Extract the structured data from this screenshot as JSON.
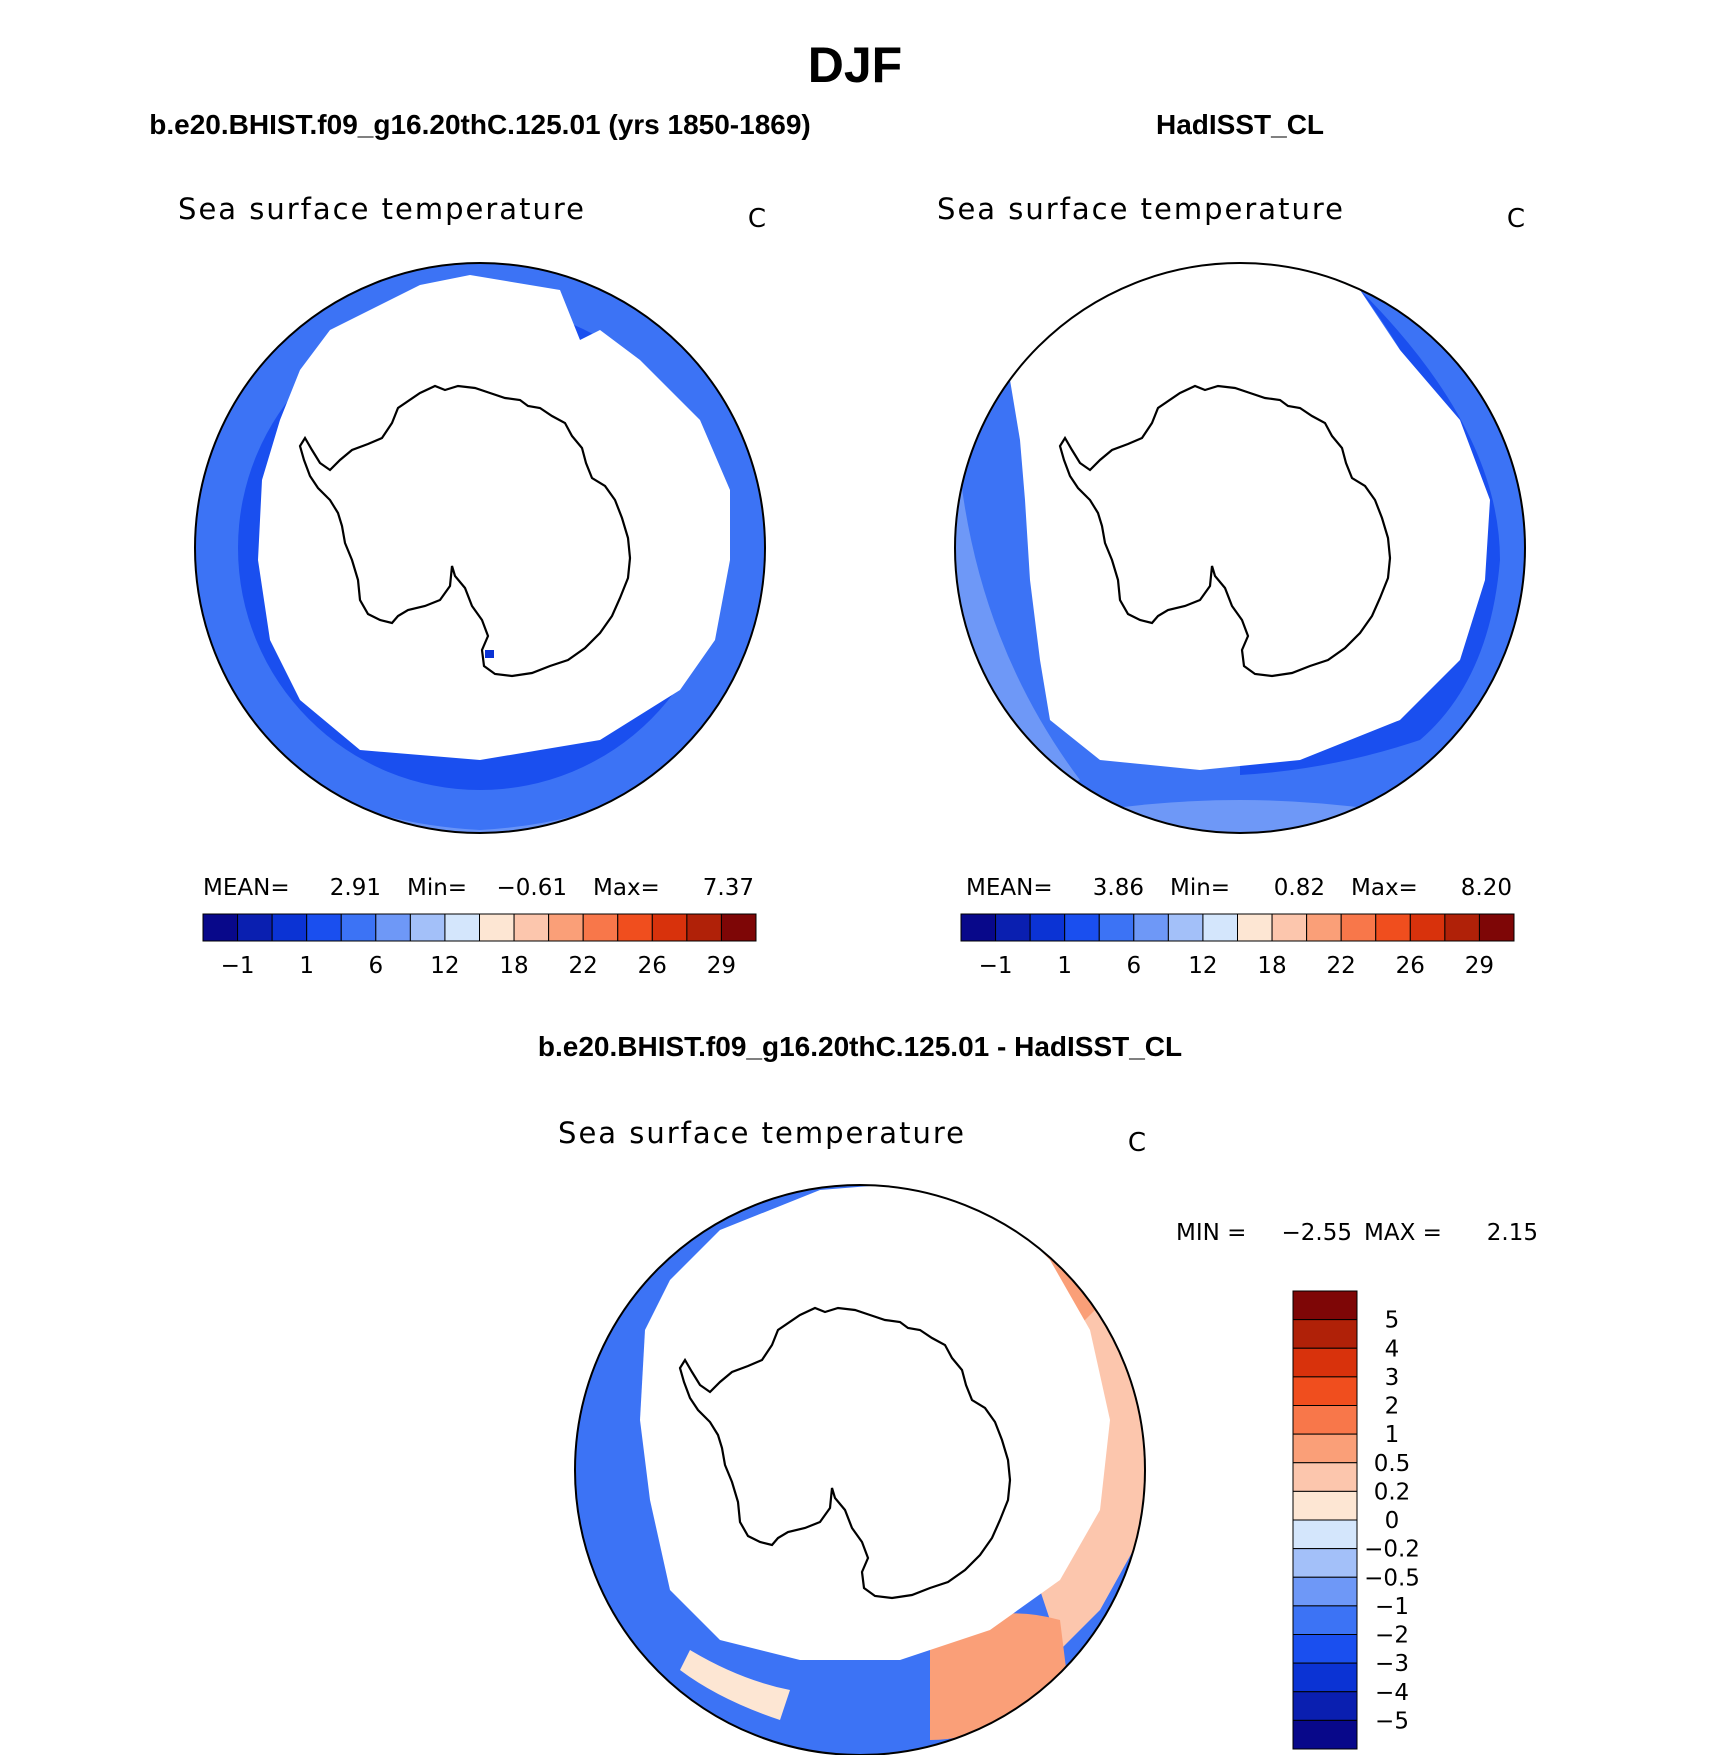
{
  "figure": {
    "season": "DJF",
    "variable": "Sea surface temperature",
    "units": "C"
  },
  "panels": [
    {
      "title": "b.e20.BHIST.f09_g16.20thC.125.01 (yrs 1850-1869)",
      "stats": {
        "mean_label": "MEAN=",
        "mean": "2.91",
        "min_label": "Min=",
        "min": "−0.61",
        "max_label": "Max=",
        "max": "7.37"
      }
    },
    {
      "title": "HadISST_CL",
      "stats": {
        "mean_label": "MEAN=",
        "mean": "3.86",
        "min_label": "Min=",
        "min": "0.82",
        "max_label": "Max=",
        "max": "8.20"
      }
    },
    {
      "title": "b.e20.BHIST.f09_g16.20thC.125.01 - HadISST_CL",
      "stats": {
        "min_label": "MIN =",
        "min": "−2.55",
        "max_label": "MAX =",
        "max": "2.15"
      }
    }
  ],
  "chart_data": [
    {
      "type": "heatmap",
      "projection": "south-polar-stereographic",
      "title": "Sea surface temperature",
      "units": "C",
      "colorbar": {
        "orientation": "horizontal",
        "colors": [
          "#08088a",
          "#0a1fb0",
          "#0b33d4",
          "#1a4fef",
          "#3c73f5",
          "#6e98f7",
          "#a3c0f9",
          "#d4e6fc",
          "#fde6d3",
          "#fcc6ad",
          "#fa9f78",
          "#f8774a",
          "#f04e1e",
          "#d8320c",
          "#b02108",
          "#7e0606"
        ],
        "tick_labels": [
          "−1",
          "1",
          "6",
          "12",
          "18",
          "22",
          "26",
          "29"
        ]
      }
    },
    {
      "type": "heatmap",
      "projection": "south-polar-stereographic",
      "title": "Sea surface temperature",
      "units": "C",
      "colorbar": {
        "orientation": "horizontal",
        "colors": [
          "#08088a",
          "#0a1fb0",
          "#0b33d4",
          "#1a4fef",
          "#3c73f5",
          "#6e98f7",
          "#a3c0f9",
          "#d4e6fc",
          "#fde6d3",
          "#fcc6ad",
          "#fa9f78",
          "#f8774a",
          "#f04e1e",
          "#d8320c",
          "#b02108",
          "#7e0606"
        ],
        "tick_labels": [
          "−1",
          "1",
          "6",
          "12",
          "18",
          "22",
          "26",
          "29"
        ]
      }
    },
    {
      "type": "heatmap",
      "projection": "south-polar-stereographic",
      "title": "Sea surface temperature",
      "units": "C",
      "colorbar": {
        "orientation": "vertical",
        "colors": [
          "#7e0606",
          "#b02108",
          "#d8320c",
          "#f04e1e",
          "#f8774a",
          "#fa9f78",
          "#fcc6ad",
          "#fde6d3",
          "#d4e6fc",
          "#a3c0f9",
          "#6e98f7",
          "#3c73f5",
          "#1a4fef",
          "#0b33d4",
          "#0a1fb0",
          "#08088a"
        ],
        "tick_labels": [
          "5",
          "4",
          "3",
          "2",
          "1",
          "0.5",
          "0.2",
          "0",
          "−0.2",
          "−0.5",
          "−1",
          "−2",
          "−3",
          "−4",
          "−5"
        ]
      }
    }
  ]
}
